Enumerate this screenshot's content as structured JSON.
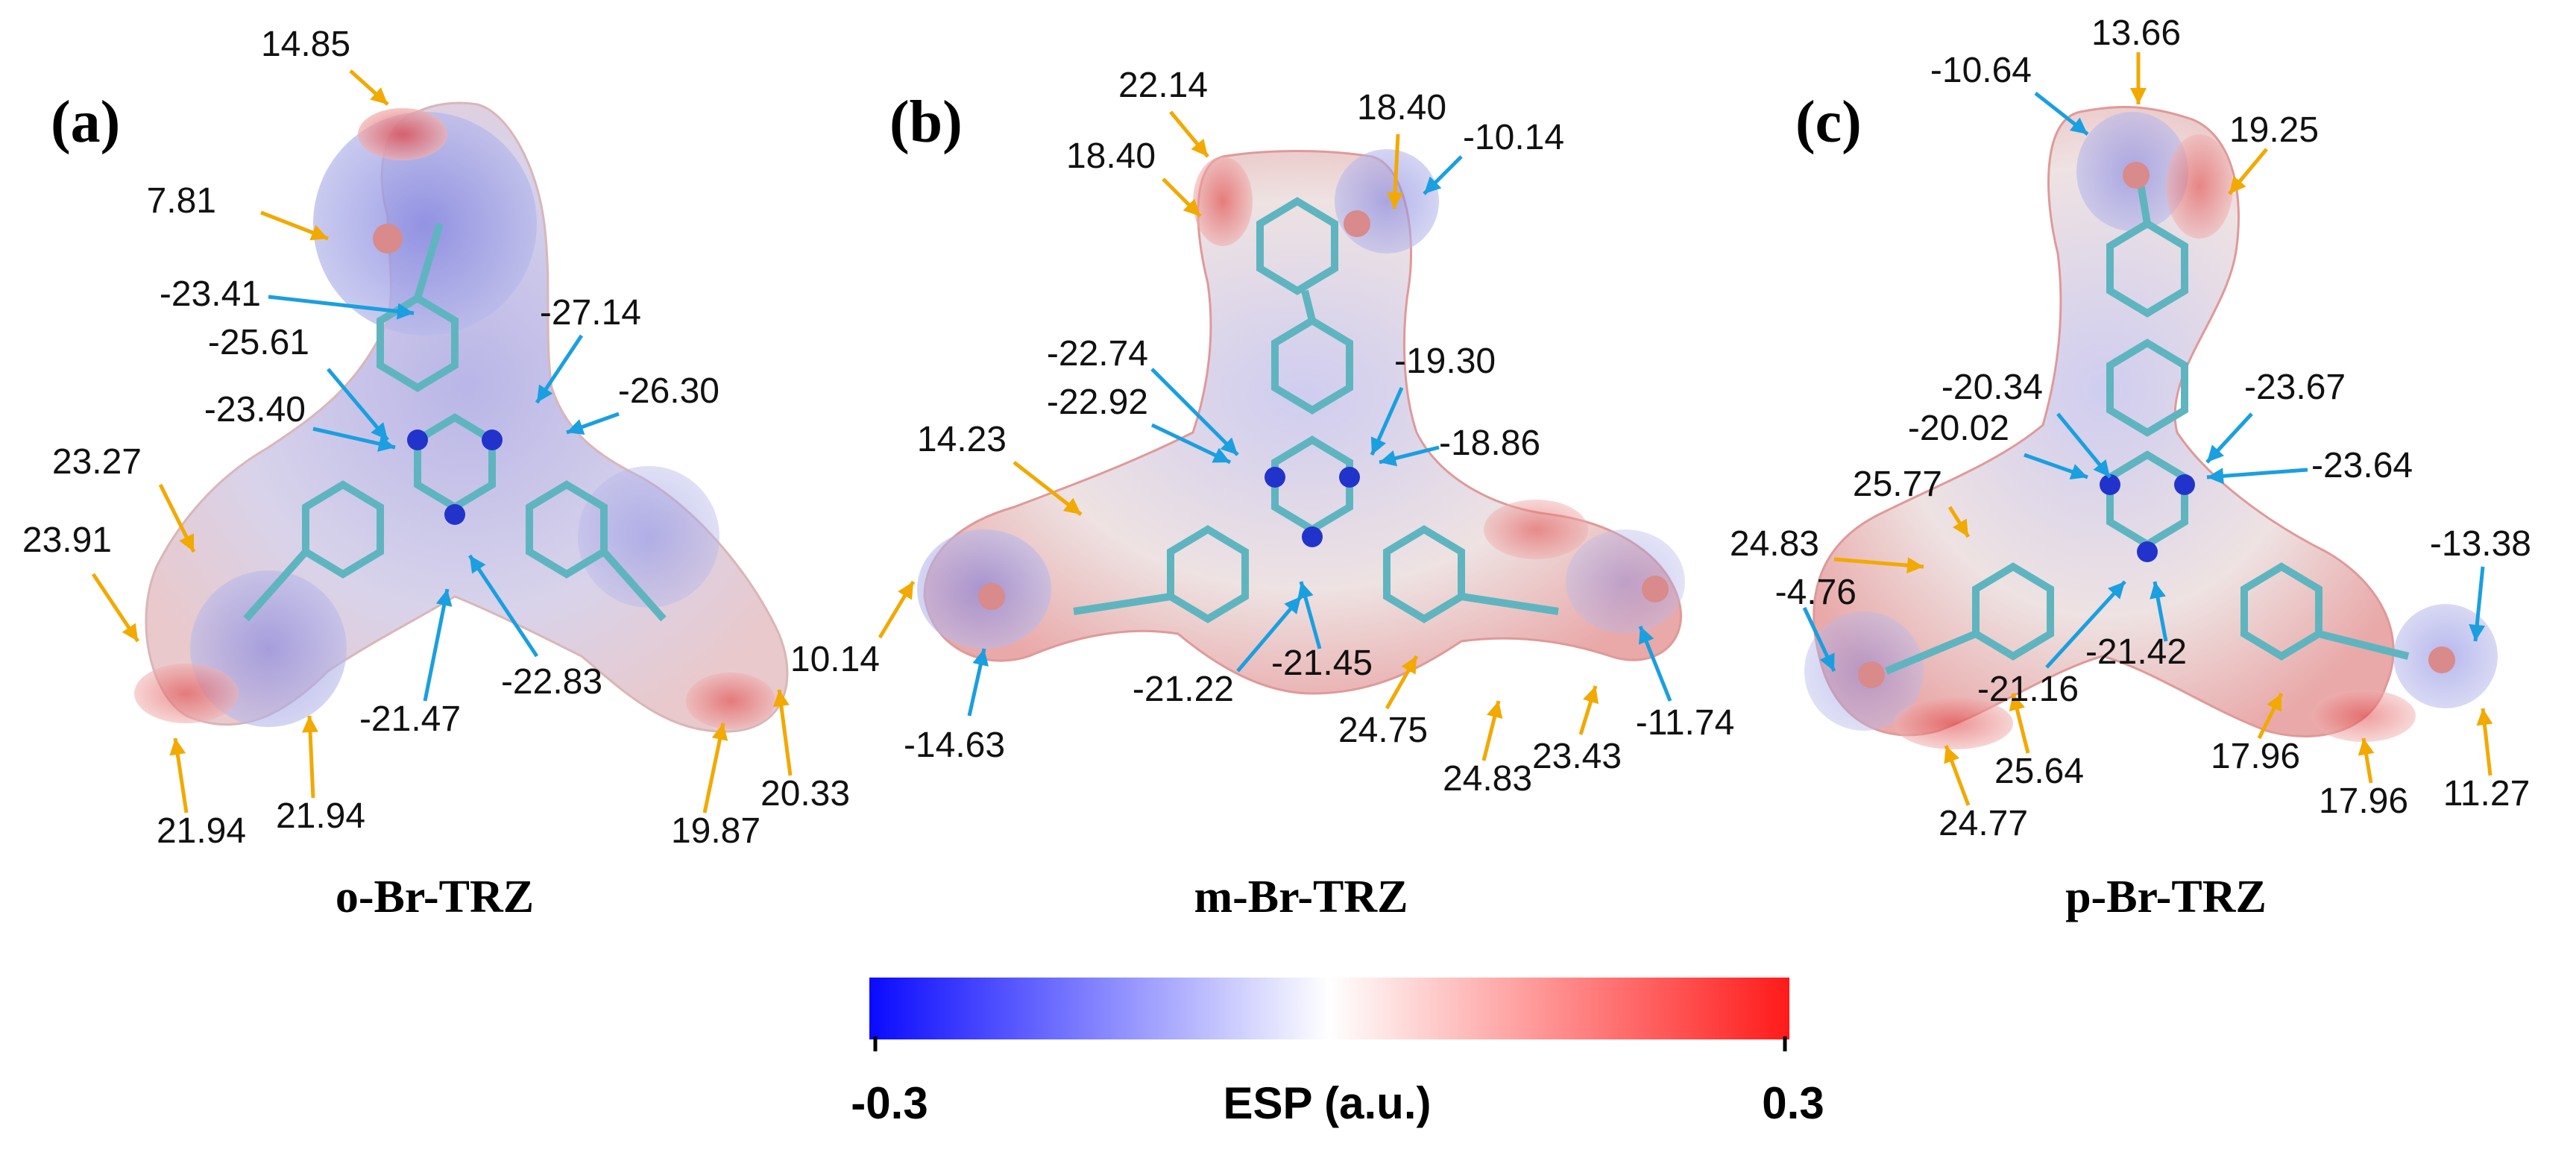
{
  "figure": {
    "panels": [
      {
        "label": "(a)",
        "molecule": "o-Br-TRZ",
        "positive_values": [
          "14.85",
          "7.81",
          "23.27",
          "23.91",
          "21.94",
          "21.94",
          "19.87",
          "20.33"
        ],
        "negative_values": [
          "-23.41",
          "-25.61",
          "-27.14",
          "-26.30",
          "-23.40",
          "-21.47",
          "-22.83"
        ]
      },
      {
        "label": "(b)",
        "molecule": "m-Br-TRZ",
        "positive_values": [
          "22.14",
          "18.40",
          "18.40",
          "14.23",
          "10.14",
          "24.75",
          "24.83",
          "23.43"
        ],
        "negative_values": [
          "-10.14",
          "-22.74",
          "-22.92",
          "-19.30",
          "-18.86",
          "-21.22",
          "-21.45",
          "-14.63",
          "-11.74"
        ]
      },
      {
        "label": "(c)",
        "molecule": "p-Br-TRZ",
        "positive_values": [
          "13.66",
          "19.25",
          "25.77",
          "24.83",
          "25.64",
          "24.77",
          "17.96",
          "17.96",
          "11.27"
        ],
        "negative_values": [
          "-10.64",
          "-20.34",
          "-20.02",
          "-23.67",
          "-23.64",
          "-13.38",
          "-4.76",
          "-21.16",
          "-21.42"
        ]
      }
    ],
    "colorbar": {
      "min_label": "-0.3",
      "max_label": "0.3",
      "title": "ESP (a.u.)",
      "colors": [
        "#0a0aff",
        "#ffffff",
        "#ff1a1a"
      ]
    },
    "arrow_colors": {
      "positive": "#f2a900",
      "negative": "#1a9fe0"
    }
  }
}
